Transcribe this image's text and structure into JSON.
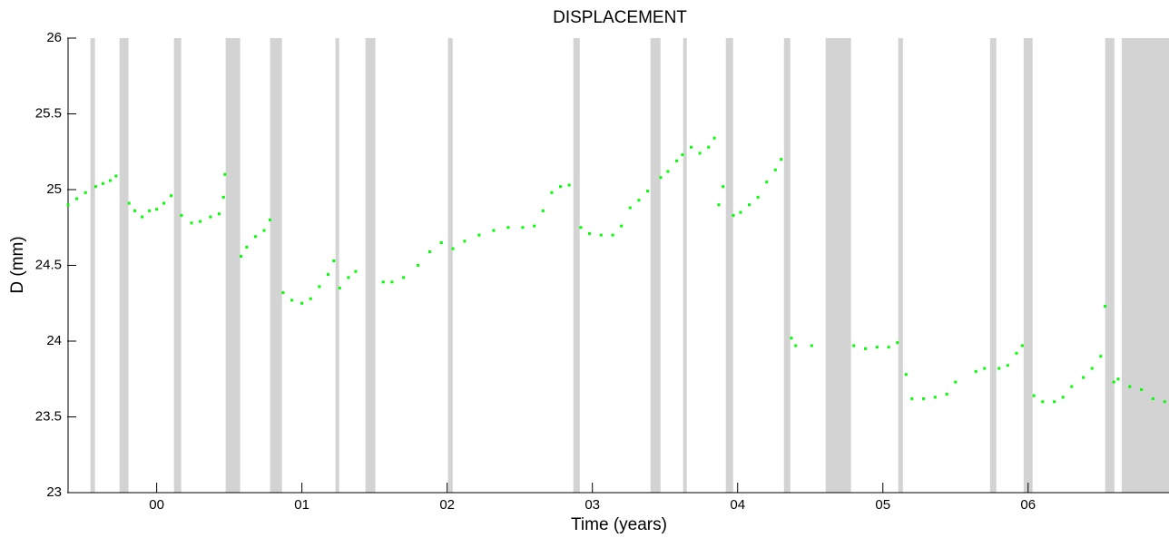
{
  "chart_data": {
    "type": "scatter",
    "title": "DISPLACEMENT",
    "x_label": "Time (years)",
    "y_label": "D (mm)",
    "color": "#00ff00",
    "gap_color": "#d3d3d3",
    "xlim": [
      -0.61,
      6.97
    ],
    "ylim": [
      23,
      26
    ],
    "xticks": [
      {
        "value": 0,
        "label": "00"
      },
      {
        "value": 1,
        "label": "01"
      },
      {
        "value": 2,
        "label": "02"
      },
      {
        "value": 3,
        "label": "03"
      },
      {
        "value": 4,
        "label": "04"
      },
      {
        "value": 5,
        "label": "05"
      },
      {
        "value": 6,
        "label": "06"
      }
    ],
    "yticks": [
      23,
      23.5,
      24,
      24.5,
      25,
      25.5,
      26
    ],
    "gaps": [
      [
        -0.456,
        -0.425
      ],
      [
        -0.256,
        -0.194
      ],
      [
        0.119,
        0.169
      ],
      [
        0.475,
        0.575
      ],
      [
        0.781,
        0.863
      ],
      [
        1.231,
        1.256
      ],
      [
        1.4375,
        1.506
      ],
      [
        2.006,
        2.038
      ],
      [
        2.869,
        2.913
      ],
      [
        3.4,
        3.469
      ],
      [
        3.625,
        3.65
      ],
      [
        3.919,
        3.969
      ],
      [
        4.319,
        4.3625
      ],
      [
        4.606,
        4.781
      ],
      [
        5.106,
        5.138
      ],
      [
        5.738,
        5.781
      ],
      [
        5.969,
        6.031
      ],
      [
        6.531,
        6.594
      ],
      [
        6.644,
        6.97
      ]
    ],
    "x": [
      -0.61,
      -0.55,
      -0.49,
      -0.42,
      -0.37,
      -0.32,
      -0.28,
      -0.19,
      -0.15,
      -0.1,
      -0.05,
      0.0,
      0.05,
      0.1,
      0.17,
      0.24,
      0.3,
      0.37,
      0.43,
      0.46,
      0.47,
      0.58,
      0.62,
      0.68,
      0.74,
      0.78,
      0.87,
      0.93,
      1.0,
      1.06,
      1.12,
      1.18,
      1.22,
      1.26,
      1.32,
      1.37,
      1.56,
      1.62,
      1.7,
      1.8,
      1.88,
      1.96,
      2.04,
      2.12,
      2.22,
      2.32,
      2.42,
      2.52,
      2.6,
      2.66,
      2.72,
      2.78,
      2.84,
      2.92,
      2.98,
      3.06,
      3.14,
      3.2,
      3.26,
      3.32,
      3.38,
      3.47,
      3.52,
      3.58,
      3.62,
      3.68,
      3.74,
      3.8,
      3.84,
      3.87,
      3.9,
      3.97,
      4.02,
      4.08,
      4.14,
      4.2,
      4.26,
      4.3,
      4.37,
      4.4,
      4.51,
      4.8,
      4.88,
      4.96,
      5.04,
      5.1,
      5.16,
      5.2,
      5.28,
      5.36,
      5.44,
      5.5,
      5.64,
      5.7,
      5.8,
      5.86,
      5.92,
      5.96,
      6.04,
      6.1,
      6.18,
      6.24,
      6.3,
      6.38,
      6.44,
      6.5,
      6.53,
      6.59,
      6.62,
      6.7,
      6.78,
      6.86,
      6.94
    ],
    "y": [
      24.9,
      24.94,
      24.98,
      25.02,
      25.04,
      25.06,
      25.09,
      24.91,
      24.86,
      24.82,
      24.86,
      24.87,
      24.91,
      24.96,
      24.83,
      24.78,
      24.79,
      24.82,
      24.84,
      24.95,
      25.1,
      24.56,
      24.62,
      24.69,
      24.73,
      24.8,
      24.32,
      24.27,
      24.25,
      24.28,
      24.36,
      24.44,
      24.53,
      24.35,
      24.42,
      24.46,
      24.39,
      24.39,
      24.42,
      24.5,
      24.59,
      24.65,
      24.61,
      24.66,
      24.7,
      24.73,
      24.75,
      24.75,
      24.76,
      24.86,
      24.98,
      25.02,
      25.03,
      24.75,
      24.71,
      24.7,
      24.7,
      24.76,
      24.88,
      24.93,
      24.99,
      25.08,
      25.12,
      25.19,
      25.23,
      25.28,
      25.24,
      25.28,
      25.34,
      24.9,
      25.02,
      24.83,
      24.85,
      24.9,
      24.95,
      25.05,
      25.13,
      25.2,
      24.02,
      23.97,
      23.97,
      23.97,
      23.95,
      23.96,
      23.96,
      23.99,
      23.78,
      23.62,
      23.62,
      23.63,
      23.65,
      23.73,
      23.8,
      23.82,
      23.82,
      23.84,
      23.92,
      23.97,
      23.64,
      23.6,
      23.6,
      23.63,
      23.7,
      23.76,
      23.82,
      23.9,
      24.23,
      23.73,
      23.75,
      23.7,
      23.68,
      23.62,
      23.6
    ]
  }
}
